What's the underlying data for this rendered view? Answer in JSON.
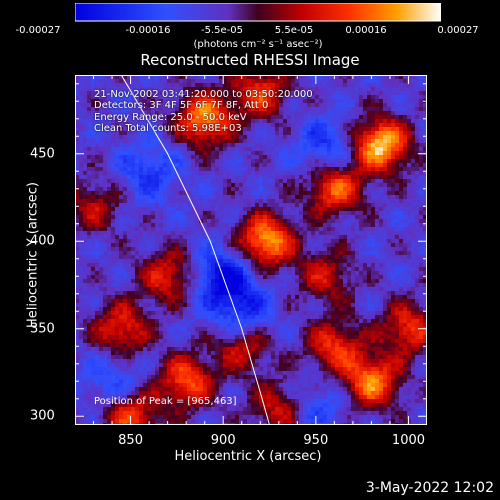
{
  "chart_data": {
    "type": "heatmap",
    "title": "Reconstructed RHESSI Image",
    "xlabel": "Heliocentric X (arcsec)",
    "ylabel": "Heliocentric Y (arcsec)",
    "xlim": [
      820,
      1010
    ],
    "ylim": [
      295,
      495
    ],
    "xticks": [
      850,
      900,
      950,
      1000
    ],
    "yticks": [
      300,
      350,
      400,
      450
    ],
    "colorbar": {
      "ticks": [
        "-0.00027",
        "-0.00016",
        "-5.5e-05",
        "5.5e-05",
        "0.00016",
        "0.00027"
      ],
      "vmin": -0.00027,
      "vmax": 0.00027,
      "units": "(photons cm⁻² s⁻¹ asec⁻²)"
    },
    "annotations": {
      "time": "21-Nov-2002 03:41:20.000 to 03:50:20.000",
      "detectors": "Detectors: 3F 4F 5F 6F 7F 8F, Att 0",
      "energy": "Energy Range: 25.0 - 50.0 keV",
      "clean": "Clean      Total counts: 5.98E+03",
      "peak": "Position of Peak = [965,463]"
    },
    "limb_curve": [
      [
        845,
        495
      ],
      [
        870,
        450
      ],
      [
        893,
        400
      ],
      [
        910,
        350
      ],
      [
        921,
        310
      ],
      [
        925,
        295
      ]
    ],
    "sources": [
      {
        "x": 985,
        "y": 455,
        "amp": 1.0
      },
      {
        "x": 960,
        "y": 430,
        "amp": 0.7
      },
      {
        "x": 890,
        "y": 470,
        "amp": 0.85
      },
      {
        "x": 920,
        "y": 485,
        "amp": 0.6
      },
      {
        "x": 923,
        "y": 400,
        "amp": 0.9
      },
      {
        "x": 870,
        "y": 380,
        "amp": 0.55
      },
      {
        "x": 845,
        "y": 350,
        "amp": 0.6
      },
      {
        "x": 880,
        "y": 320,
        "amp": 0.7
      },
      {
        "x": 910,
        "y": 340,
        "amp": 0.5
      },
      {
        "x": 960,
        "y": 340,
        "amp": 0.6
      },
      {
        "x": 980,
        "y": 320,
        "amp": 0.8
      },
      {
        "x": 1000,
        "y": 350,
        "amp": 0.6
      },
      {
        "x": 955,
        "y": 380,
        "amp": 0.45
      },
      {
        "x": 830,
        "y": 420,
        "amp": 0.4
      },
      {
        "x": 850,
        "y": 300,
        "amp": 0.65
      },
      {
        "x": 930,
        "y": 305,
        "amp": 0.5
      }
    ],
    "negative_regions": [
      {
        "x": 900,
        "y": 380,
        "amp": 0.8
      },
      {
        "x": 910,
        "y": 360,
        "amp": 0.6
      },
      {
        "x": 860,
        "y": 440,
        "amp": 0.5
      },
      {
        "x": 955,
        "y": 455,
        "amp": 0.5
      },
      {
        "x": 840,
        "y": 320,
        "amp": 0.4
      },
      {
        "x": 950,
        "y": 305,
        "amp": 0.4
      }
    ]
  },
  "footer": {
    "date_stamp": "3-May-2022 12:02"
  },
  "colors": {
    "background": "#000000",
    "limb_line": "#ffffff"
  }
}
